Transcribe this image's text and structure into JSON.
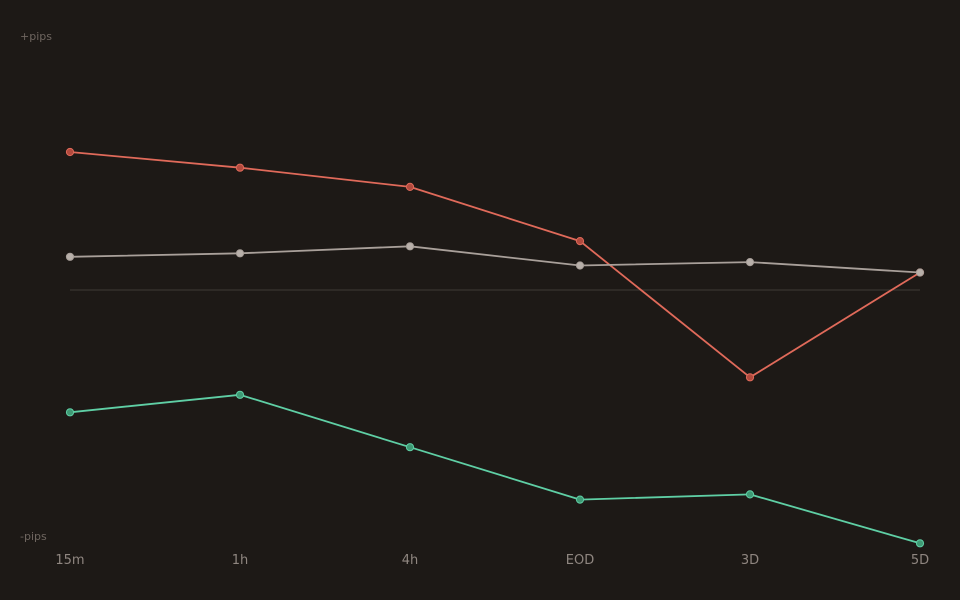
{
  "chart_data": {
    "type": "line",
    "ylabel_top": "+pips",
    "ylabel_bottom": "-pips",
    "categories": [
      "15m",
      "1h",
      "4h",
      "EOD",
      "3D",
      "5D"
    ],
    "ylim": [
      -145,
      145
    ],
    "zero_line": true,
    "series": [
      {
        "color": "#e06a5a",
        "marker_color": "#b24a3e",
        "values": [
          79,
          70,
          59,
          28,
          -50,
          10
        ]
      },
      {
        "color": "#a9a09a",
        "marker_color": "#b8b0aa",
        "values": [
          19,
          21,
          25,
          14,
          16,
          10
        ]
      },
      {
        "color": "#5fcfa5",
        "marker_color": "#3f9a75",
        "values": [
          -70,
          -60,
          -90,
          -120,
          -117,
          -145
        ]
      }
    ]
  }
}
